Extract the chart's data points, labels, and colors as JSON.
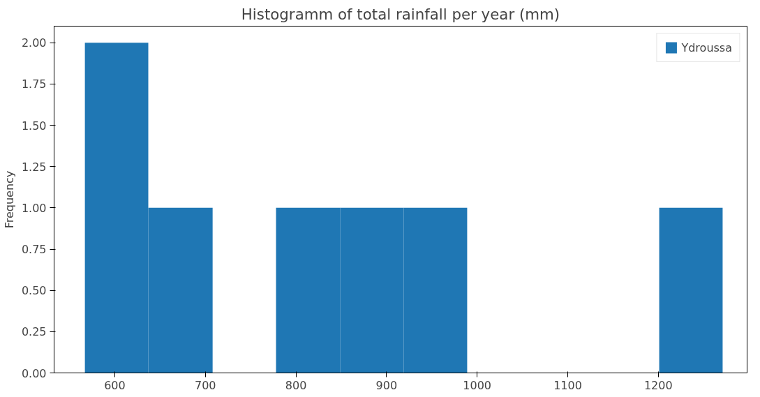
{
  "chart_data": {
    "type": "histogram",
    "title": "Histogramm of total rainfall per year (mm)",
    "ylabel": "Frequency",
    "bins": [
      567,
      637,
      708,
      778,
      849,
      919,
      989,
      1201,
      1271
    ],
    "series": [
      {
        "name": "Ydroussa",
        "color": "#1f77b4",
        "values": [
          2,
          1,
          0,
          1,
          1,
          1,
          0,
          1
        ]
      }
    ],
    "xlim": [
      533,
      1298
    ],
    "xticks": [
      600,
      700,
      800,
      900,
      1000,
      1100,
      1200
    ],
    "ylim": [
      0,
      2.1
    ],
    "yticks": [
      {
        "value": 0,
        "label": "0.00"
      },
      {
        "value": 0.25,
        "label": "0.25"
      },
      {
        "value": 0.5,
        "label": "0.50"
      },
      {
        "value": 0.75,
        "label": "0.75"
      },
      {
        "value": 1,
        "label": "1.00"
      },
      {
        "value": 1.25,
        "label": "1.25"
      },
      {
        "value": 1.5,
        "label": "1.50"
      },
      {
        "value": 1.75,
        "label": "1.75"
      },
      {
        "value": 2,
        "label": "2.00"
      }
    ],
    "grid": false,
    "legend": "top right"
  }
}
